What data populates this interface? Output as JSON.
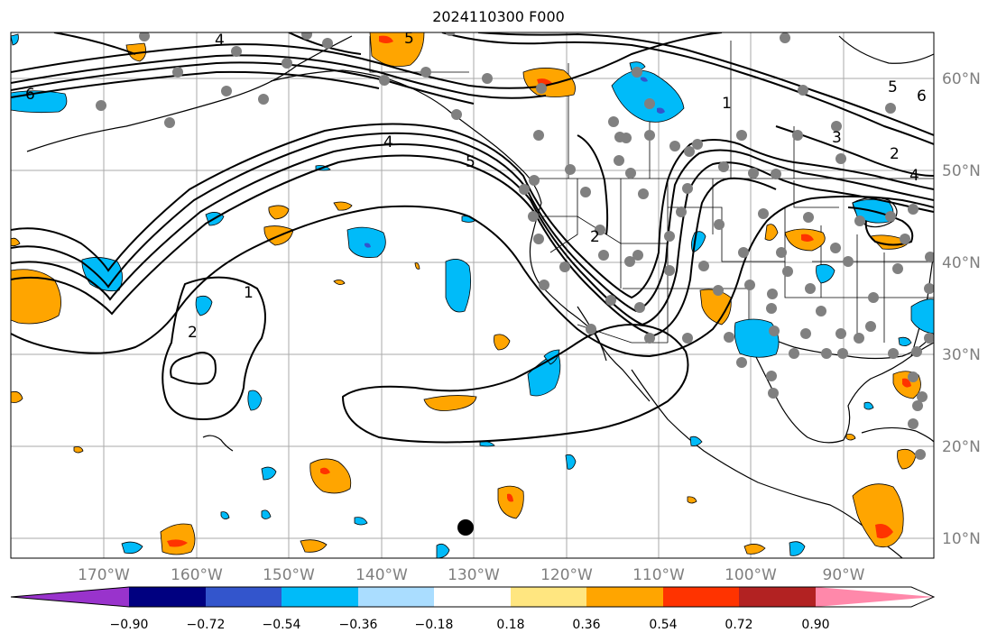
{
  "title": "2024110300 F000",
  "lon_labels": [
    "170°W",
    "160°W",
    "150°W",
    "140°W",
    "130°W",
    "120°W",
    "110°W",
    "100°W",
    "90°W"
  ],
  "lat_labels": [
    "60°N",
    "50°N",
    "40°N",
    "30°N",
    "20°N",
    "10°N"
  ],
  "contour_labels": [
    "6",
    "5",
    "4",
    "4",
    "5",
    "2",
    "1",
    "2",
    "1",
    "2",
    "3",
    "4",
    "5",
    "6"
  ],
  "colorbar": {
    "tick_labels": [
      "−0.90",
      "−0.72",
      "−0.54",
      "−0.36",
      "−0.18",
      "0.18",
      "0.36",
      "0.54",
      "0.72",
      "0.90"
    ],
    "colors": [
      "#9933cc",
      "#000080",
      "#3355cc",
      "#00bbf9",
      "#aaddff",
      "#ffffff",
      "#ffe680",
      "#ffa500",
      "#ff3300",
      "#b22222",
      "#ff88aa"
    ]
  },
  "colors": {
    "positive": "#ffa500",
    "positive_strong": "#ff3300",
    "negative": "#00bbf9",
    "negative_strong": "#3355cc",
    "station": "#808080",
    "grid": "#aaaaaa",
    "tick_text": "#7f7f7f"
  }
}
